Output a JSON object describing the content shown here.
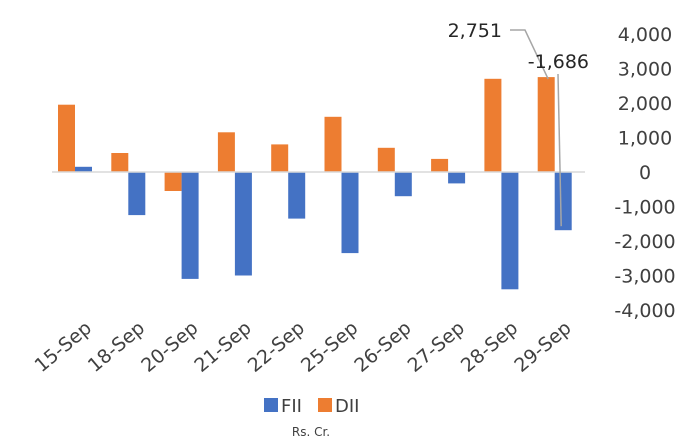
{
  "chart_data": {
    "type": "bar",
    "categories": [
      "15-Sep",
      "18-Sep",
      "20-Sep",
      "21-Sep",
      "22-Sep",
      "25-Sep",
      "26-Sep",
      "27-Sep",
      "28-Sep",
      "29-Sep"
    ],
    "series": [
      {
        "name": "FII",
        "color": "#4472C4",
        "values": [
          150,
          -1250,
          -3100,
          -3000,
          -1350,
          -2350,
          -700,
          -330,
          -3400,
          -1686
        ]
      },
      {
        "name": "DII",
        "color": "#ED7D31",
        "values": [
          1950,
          550,
          -550,
          1150,
          800,
          1600,
          700,
          380,
          2700,
          2751
        ]
      }
    ],
    "ylim": [
      -4000,
      4000
    ],
    "yticks": [
      4000,
      3000,
      2000,
      1000,
      0,
      -1000,
      -2000,
      -3000,
      -4000
    ],
    "ytick_labels": [
      "4,000",
      "3,000",
      "2,000",
      "1,000",
      "0",
      "-1,000",
      "-2,000",
      "-3,000",
      "-4,000"
    ],
    "axis_position": "right",
    "grid": false,
    "legend": {
      "placement": "bottom",
      "entries": [
        "FII",
        "DII"
      ]
    },
    "unit_label": "Rs. Cr.",
    "annotations": [
      {
        "text": "2,751",
        "series": "DII",
        "category": "29-Sep",
        "value": 2751
      },
      {
        "text": "-1,686",
        "series": "FII",
        "category": "29-Sep",
        "value": -1686
      }
    ]
  }
}
